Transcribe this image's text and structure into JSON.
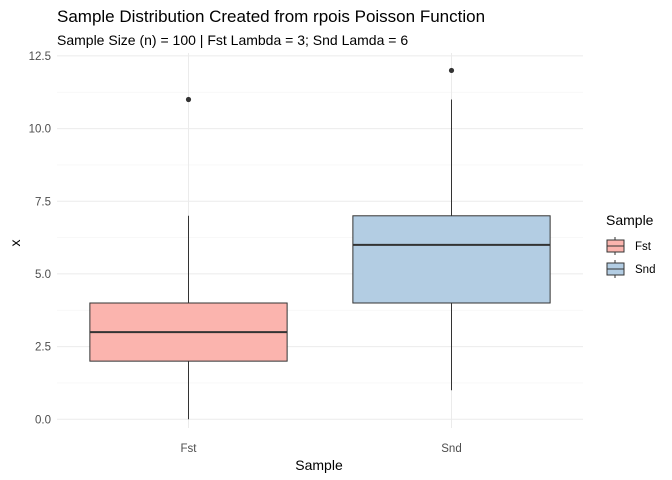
{
  "chart_data": {
    "type": "boxplot",
    "title": "Sample Distribution Created from rpois Poisson Function",
    "subtitle": "Sample Size (n) = 100 | Fst Lambda = 3; Snd Lamda = 6",
    "xlabel": "Sample",
    "ylabel": "x",
    "ylim": [
      -0.3,
      12.6
    ],
    "y_ticks": [
      0.0,
      2.5,
      5.0,
      7.5,
      10.0,
      12.5
    ],
    "y_tick_labels": [
      "0.0",
      "2.5",
      "5.0",
      "7.5",
      "10.0",
      "12.5"
    ],
    "grid": true,
    "legend": {
      "title": "Sample",
      "placement": "right"
    },
    "categories": [
      "Fst",
      "Snd"
    ],
    "series": [
      {
        "name": "Fst",
        "min": 0,
        "q1": 2,
        "median": 3,
        "q3": 4,
        "max": 7,
        "outliers": [
          11
        ],
        "color": "#fbb4ae"
      },
      {
        "name": "Snd",
        "min": 1,
        "q1": 4,
        "median": 6,
        "q3": 7,
        "max": 11,
        "outliers": [
          12
        ],
        "color": "#b3cde3"
      }
    ]
  }
}
